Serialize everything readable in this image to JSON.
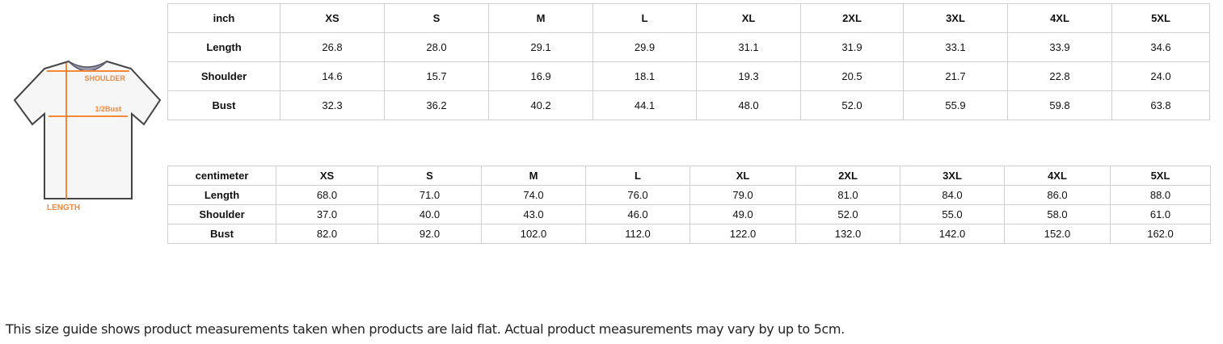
{
  "diagram": {
    "labels": {
      "shoulder": "SHOULDER",
      "bust": "1/2Bust",
      "length": "LENGTH"
    },
    "accent": "#f5883b"
  },
  "inch_table": {
    "header": [
      "inch",
      "XS",
      "S",
      "M",
      "L",
      "XL",
      "2XL",
      "3XL",
      "4XL",
      "5XL"
    ],
    "rows": [
      [
        "Length",
        "26.8",
        "28.0",
        "29.1",
        "29.9",
        "31.1",
        "31.9",
        "33.1",
        "33.9",
        "34.6"
      ],
      [
        "Shoulder",
        "14.6",
        "15.7",
        "16.9",
        "18.1",
        "19.3",
        "20.5",
        "21.7",
        "22.8",
        "24.0"
      ],
      [
        "Bust",
        "32.3",
        "36.2",
        "40.2",
        "44.1",
        "48.0",
        "52.0",
        "55.9",
        "59.8",
        "63.8"
      ]
    ]
  },
  "cm_table": {
    "header": [
      "centimeter",
      "XS",
      "S",
      "M",
      "L",
      "XL",
      "2XL",
      "3XL",
      "4XL",
      "5XL"
    ],
    "rows": [
      [
        "Length",
        "68.0",
        "71.0",
        "74.0",
        "76.0",
        "79.0",
        "81.0",
        "84.0",
        "86.0",
        "88.0"
      ],
      [
        "Shoulder",
        "37.0",
        "40.0",
        "43.0",
        "46.0",
        "49.0",
        "52.0",
        "55.0",
        "58.0",
        "61.0"
      ],
      [
        "Bust",
        "82.0",
        "92.0",
        "102.0",
        "112.0",
        "122.0",
        "132.0",
        "142.0",
        "152.0",
        "162.0"
      ]
    ]
  },
  "note": "This size guide shows product measurements taken when products are laid flat. Actual product measurements may vary by up to 5cm."
}
